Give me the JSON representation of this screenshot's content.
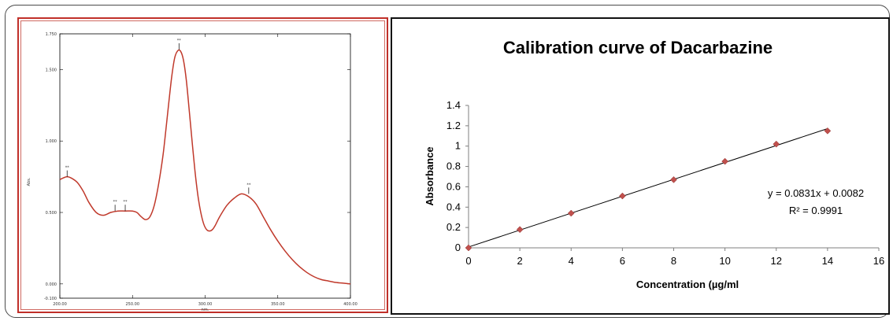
{
  "chart_data": [
    {
      "type": "line",
      "title": "",
      "xlabel": "nm.",
      "ylabel": "Abs.",
      "xlim": [
        200,
        400
      ],
      "ylim": [
        -0.1,
        1.75
      ],
      "x_ticks": [
        "200.00",
        "250.00",
        "300.00",
        "350.00",
        "400.00"
      ],
      "y_ticks": [
        "-0.100",
        "0.000",
        "0.500",
        "1.000",
        "1.500",
        "1.750"
      ],
      "line_color": "#c0392b",
      "series": [
        {
          "x": [
            200,
            202,
            205,
            208,
            212,
            216,
            220,
            225,
            230,
            235,
            240,
            245,
            250,
            253,
            256,
            259,
            262,
            265,
            268,
            271,
            273,
            275,
            277,
            279,
            281,
            283,
            285,
            287,
            289,
            291,
            293,
            295,
            297,
            299,
            301,
            303,
            305,
            307,
            310,
            315,
            320,
            325,
            330,
            335,
            340,
            345,
            350,
            355,
            360,
            365,
            370,
            375,
            380,
            385,
            390,
            395,
            400
          ],
          "y": [
            0.73,
            0.74,
            0.75,
            0.74,
            0.71,
            0.65,
            0.57,
            0.5,
            0.48,
            0.5,
            0.51,
            0.51,
            0.51,
            0.5,
            0.47,
            0.45,
            0.47,
            0.55,
            0.7,
            0.9,
            1.08,
            1.27,
            1.45,
            1.58,
            1.63,
            1.63,
            1.57,
            1.43,
            1.22,
            1.0,
            0.79,
            0.62,
            0.5,
            0.42,
            0.38,
            0.37,
            0.38,
            0.41,
            0.47,
            0.55,
            0.6,
            0.63,
            0.61,
            0.56,
            0.47,
            0.38,
            0.3,
            0.23,
            0.17,
            0.12,
            0.08,
            0.05,
            0.03,
            0.02,
            0.01,
            0.005,
            0.0
          ]
        }
      ],
      "annotations": [
        {
          "x": 205,
          "y": 0.75,
          "text": "**"
        },
        {
          "x": 238,
          "y": 0.51,
          "text": "**"
        },
        {
          "x": 245,
          "y": 0.51,
          "text": "**"
        },
        {
          "x": 282,
          "y": 1.64,
          "text": "**"
        },
        {
          "x": 330,
          "y": 0.63,
          "text": "**"
        }
      ]
    },
    {
      "type": "scatter",
      "title": "Calibration curve of Dacarbazine",
      "xlabel": "Concentration (µg/ml",
      "ylabel": "Absorbance",
      "xlim": [
        0,
        16
      ],
      "ylim": [
        0,
        1.4
      ],
      "x_ticks": [
        "0",
        "2",
        "4",
        "6",
        "8",
        "10",
        "12",
        "14",
        "16"
      ],
      "y_ticks": [
        "0",
        "0.2",
        "0.4",
        "0.6",
        "0.8",
        "1",
        "1.2",
        "1.4"
      ],
      "marker_color": "#c0504d",
      "series": [
        {
          "x": [
            0,
            2,
            4,
            6,
            8,
            10,
            12,
            14
          ],
          "y": [
            0.0,
            0.18,
            0.34,
            0.51,
            0.67,
            0.85,
            1.02,
            1.15
          ]
        }
      ],
      "trendline": {
        "slope": 0.0831,
        "intercept": 0.0082,
        "x_range": [
          0,
          14
        ]
      },
      "annotations": [
        {
          "text": "y = 0.0831x + 0.0082"
        },
        {
          "text": "R² = 0.9991"
        }
      ]
    }
  ]
}
